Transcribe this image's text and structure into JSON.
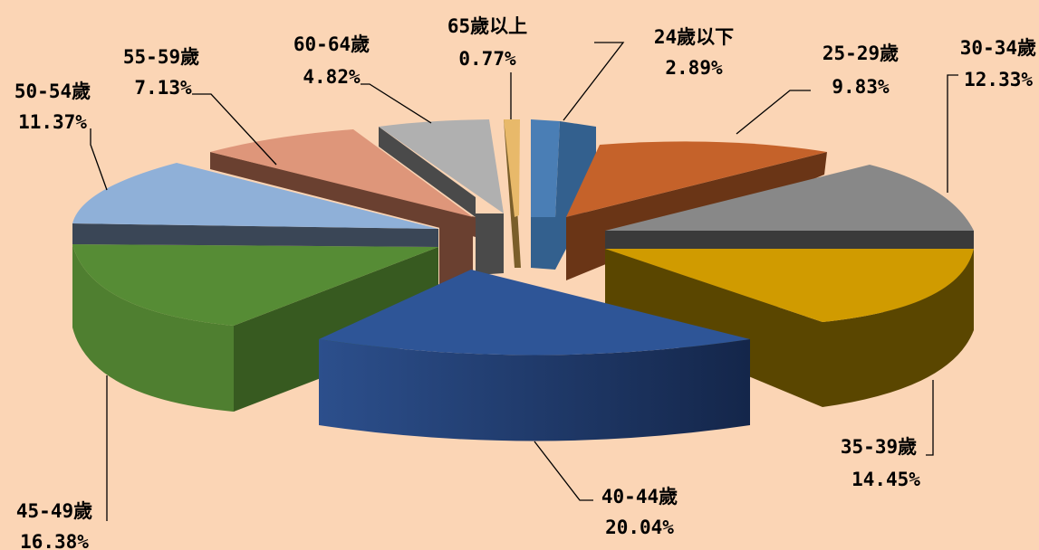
{
  "chart_data": {
    "type": "pie",
    "title": "",
    "legend": "none",
    "slices": [
      {
        "label": "24歲以下",
        "value": "2.89%",
        "pct": 2.89,
        "color": "#4a7eb5"
      },
      {
        "label": "25-29歲",
        "value": "9.83%",
        "pct": 9.83,
        "color": "#c5622a"
      },
      {
        "label": "30-34歲",
        "value": "12.33%",
        "pct": 12.33,
        "color": "#888888"
      },
      {
        "label": "35-39歲",
        "value": "14.45%",
        "pct": 14.45,
        "color": "#d09b00"
      },
      {
        "label": "40-44歲",
        "value": "20.04%",
        "pct": 20.04,
        "color": "#2e5597"
      },
      {
        "label": "45-49歲",
        "value": "16.38%",
        "pct": 16.38,
        "color": "#568c35"
      },
      {
        "label": "50-54歲",
        "value": "11.37%",
        "pct": 11.37,
        "color": "#8fb0d8"
      },
      {
        "label": "55-59歲",
        "value": "7.13%",
        "pct": 7.13,
        "color": "#de967a"
      },
      {
        "label": "60-64歲",
        "value": "4.82%",
        "pct": 4.82,
        "color": "#b0b0b0"
      },
      {
        "label": "65歲以上",
        "value": "0.77%",
        "pct": 0.77,
        "color": "#e8b96a"
      }
    ]
  }
}
